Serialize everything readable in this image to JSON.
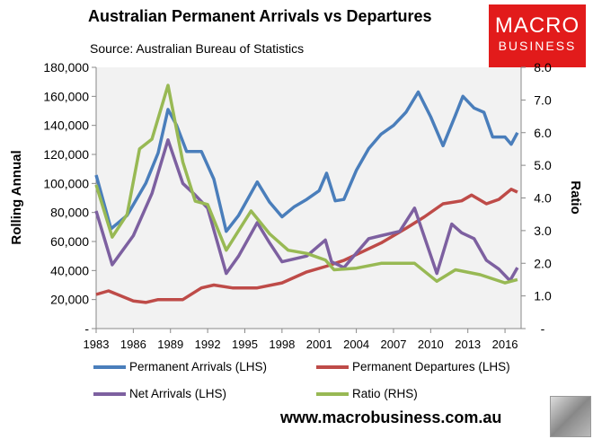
{
  "header": {
    "title": "Australian Permanent Arrivals vs Departures",
    "source": "Source: Australian Bureau of Statistics",
    "logo": [
      "MACRO",
      "BUSINESS"
    ],
    "url": "www.macrobusiness.com.au"
  },
  "chart_data": {
    "type": "line",
    "title": "Australian Permanent Arrivals vs Departures",
    "ylabel": "Rolling Annual",
    "y2label": "Ratio",
    "xlim": [
      1983,
      2017.3
    ],
    "ylim": [
      0,
      180000
    ],
    "y2lim": [
      0,
      8
    ],
    "xticks": [
      "1983",
      "1986",
      "1989",
      "1992",
      "1995",
      "1998",
      "2001",
      "2004",
      "2007",
      "2010",
      "2013",
      "2016"
    ],
    "yticks": [
      "-",
      "20,000",
      "40,000",
      "60,000",
      "80,000",
      "100,000",
      "120,000",
      "140,000",
      "160,000",
      "180,000"
    ],
    "y2ticks": [
      "-",
      "1.0",
      "2.0",
      "3.0",
      "4.0",
      "5.0",
      "6.0",
      "7.0",
      "8.0"
    ],
    "grid": false,
    "legend": "bottom",
    "series": [
      {
        "name": "Permanent Arrivals (LHS)",
        "axis": "left",
        "color": "#4a7ebb",
        "points": [
          [
            1983,
            105800
          ],
          [
            1984.2,
            68700
          ],
          [
            1985.5,
            78000
          ],
          [
            1987,
            100000
          ],
          [
            1988,
            121000
          ],
          [
            1988.8,
            151000
          ],
          [
            1989.5,
            140000
          ],
          [
            1990.3,
            122000
          ],
          [
            1991.5,
            122000
          ],
          [
            1992.5,
            103000
          ],
          [
            1993.5,
            67000
          ],
          [
            1994.5,
            78000
          ],
          [
            1996,
            101000
          ],
          [
            1997,
            87000
          ],
          [
            1998,
            77000
          ],
          [
            1999,
            84000
          ],
          [
            2000,
            89000
          ],
          [
            2001,
            95000
          ],
          [
            2001.6,
            107000
          ],
          [
            2002.3,
            88000
          ],
          [
            2003,
            89000
          ],
          [
            2004,
            109000
          ],
          [
            2005,
            124000
          ],
          [
            2006,
            134000
          ],
          [
            2007,
            140000
          ],
          [
            2008,
            149000
          ],
          [
            2009,
            163000
          ],
          [
            2010,
            146000
          ],
          [
            2011,
            126000
          ],
          [
            2012,
            147000
          ],
          [
            2012.6,
            160000
          ],
          [
            2013.5,
            152000
          ],
          [
            2014.3,
            149000
          ],
          [
            2015,
            132000
          ],
          [
            2016,
            132000
          ],
          [
            2016.5,
            127000
          ],
          [
            2017,
            135000
          ]
        ]
      },
      {
        "name": "Permanent Departures (LHS)",
        "axis": "left",
        "color": "#be4b48",
        "points": [
          [
            1983,
            23500
          ],
          [
            1984,
            26000
          ],
          [
            1986,
            19000
          ],
          [
            1987,
            18000
          ],
          [
            1988,
            20000
          ],
          [
            1990,
            20000
          ],
          [
            1991.5,
            28000
          ],
          [
            1992.5,
            30000
          ],
          [
            1994,
            28000
          ],
          [
            1996,
            28000
          ],
          [
            1998,
            31500
          ],
          [
            2000,
            39000
          ],
          [
            2001.6,
            43000
          ],
          [
            2003,
            47000
          ],
          [
            2004.5,
            53000
          ],
          [
            2006,
            59000
          ],
          [
            2008,
            69000
          ],
          [
            2009.5,
            77000
          ],
          [
            2011,
            86000
          ],
          [
            2012.5,
            88000
          ],
          [
            2013.3,
            92000
          ],
          [
            2014.5,
            86000
          ],
          [
            2015.5,
            89000
          ],
          [
            2016.5,
            96000
          ],
          [
            2017,
            94000
          ]
        ]
      },
      {
        "name": "Net Arrivals (LHS)",
        "axis": "left",
        "color": "#7d60a0",
        "points": [
          [
            1983,
            81000
          ],
          [
            1984.3,
            44000
          ],
          [
            1986,
            64000
          ],
          [
            1987.5,
            93000
          ],
          [
            1988.8,
            130000
          ],
          [
            1990,
            100000
          ],
          [
            1991,
            92000
          ],
          [
            1992,
            83000
          ],
          [
            1993.5,
            38000
          ],
          [
            1994.5,
            50000
          ],
          [
            1996,
            73000
          ],
          [
            1997,
            59000
          ],
          [
            1998,
            46000
          ],
          [
            2000,
            50000
          ],
          [
            2001.5,
            61000
          ],
          [
            2002,
            46000
          ],
          [
            2003,
            42000
          ],
          [
            2004,
            52000
          ],
          [
            2005,
            62000
          ],
          [
            2006,
            64000
          ],
          [
            2007.5,
            67000
          ],
          [
            2008.7,
            83000
          ],
          [
            2010.5,
            38000
          ],
          [
            2011.7,
            72000
          ],
          [
            2012.5,
            66000
          ],
          [
            2013.5,
            62000
          ],
          [
            2014.5,
            47000
          ],
          [
            2015.5,
            41000
          ],
          [
            2016.4,
            33000
          ],
          [
            2017,
            42000
          ]
        ]
      },
      {
        "name": "Ratio (RHS)",
        "axis": "right",
        "color": "#98b954",
        "points": [
          [
            1983,
            4.4
          ],
          [
            1984.3,
            2.8
          ],
          [
            1985.5,
            3.5
          ],
          [
            1986.5,
            5.5
          ],
          [
            1987.5,
            5.8
          ],
          [
            1988.8,
            7.45
          ],
          [
            1990,
            5.1
          ],
          [
            1991,
            3.9
          ],
          [
            1992,
            3.8
          ],
          [
            1993.5,
            2.4
          ],
          [
            1995.5,
            3.6
          ],
          [
            1997,
            2.9
          ],
          [
            1998.5,
            2.4
          ],
          [
            2000,
            2.3
          ],
          [
            2001.5,
            2.1
          ],
          [
            2002.2,
            1.8
          ],
          [
            2004,
            1.85
          ],
          [
            2006,
            2.0
          ],
          [
            2008.7,
            2.0
          ],
          [
            2010.5,
            1.45
          ],
          [
            2012,
            1.8
          ],
          [
            2014,
            1.65
          ],
          [
            2016,
            1.4
          ],
          [
            2017,
            1.5
          ]
        ]
      }
    ]
  }
}
